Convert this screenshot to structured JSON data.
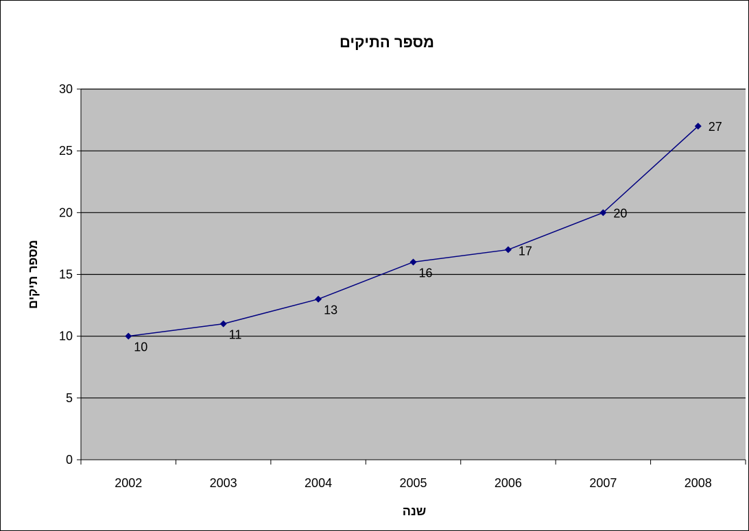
{
  "chart_data": {
    "type": "line",
    "title": "מספר התיקים",
    "xlabel": "שנה",
    "ylabel": "מספר תיקים",
    "categories": [
      "2002",
      "2003",
      "2004",
      "2005",
      "2006",
      "2007",
      "2008"
    ],
    "series": [
      {
        "values": [
          10,
          11,
          13,
          16,
          17,
          20,
          27
        ],
        "color": "#000080"
      }
    ],
    "ylim": [
      0,
      30
    ],
    "yticks": [
      "0",
      "5",
      "10",
      "15",
      "20",
      "25",
      "30"
    ],
    "grid": true,
    "plot_background": "#c0c0c0",
    "legend": "none"
  }
}
